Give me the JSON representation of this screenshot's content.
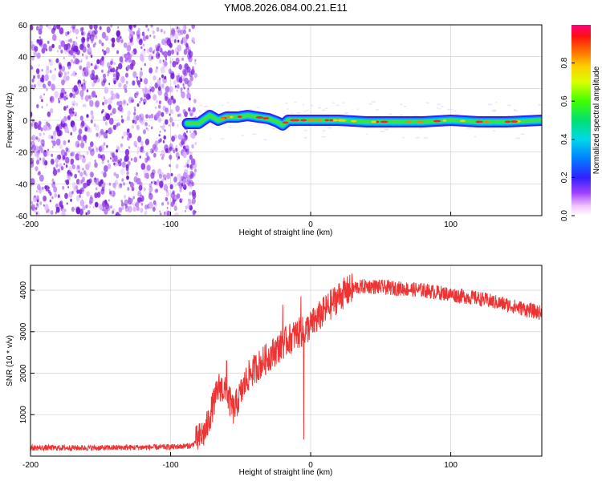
{
  "title": "YM08.2026.084.00.21.E11",
  "colors": {
    "snr_line": "#ee3333",
    "noise_dots": "#8a2be2",
    "grid": "#cccccc"
  },
  "chart_data": [
    {
      "type": "heatmap",
      "xlabel": "Height of straight line (km)",
      "ylabel": "Frequency (Hz)",
      "xlim": [
        -200,
        165
      ],
      "ylim": [
        -60,
        60
      ],
      "xticks": [
        -200,
        -100,
        0,
        100
      ],
      "xtick_labels": [
        "-200",
        "-100",
        "0",
        "100"
      ],
      "yticks": [
        -60,
        -40,
        -20,
        0,
        20,
        40,
        60
      ],
      "ytick_labels": [
        "-60",
        "-40",
        "-20",
        "0",
        "20",
        "40",
        "60"
      ],
      "noise_region": {
        "x_from": -200,
        "x_to": -82
      },
      "signal_ridge": {
        "x": [
          -88,
          -80,
          -72,
          -66,
          -60,
          -52,
          -45,
          -38,
          -30,
          -24,
          -20,
          -16,
          -10,
          -4,
          0,
          20,
          40,
          80,
          100,
          120,
          140,
          165
        ],
        "freq": [
          -2,
          -2,
          3,
          0,
          2,
          2,
          3,
          2,
          1,
          -1,
          -3,
          0,
          0,
          0,
          0,
          0,
          -1,
          -1,
          0,
          -1,
          -1,
          0
        ]
      },
      "colorbar": {
        "label": "Normalized spectral amplitude",
        "range": [
          0.0,
          1.0
        ],
        "ticks": [
          0.0,
          0.2,
          0.4,
          0.6,
          0.8
        ],
        "tick_labels": [
          "0.0",
          "0.2",
          "0.4",
          "0.6",
          "0.8"
        ]
      }
    },
    {
      "type": "line",
      "xlabel": "Height of straight line (km)",
      "ylabel": "SNR (10 * v/v)",
      "xlim": [
        -200,
        165
      ],
      "ylim": [
        0,
        4600
      ],
      "xticks": [
        -200,
        -100,
        0,
        100
      ],
      "xtick_labels": [
        "-200",
        "-100",
        "0",
        "100"
      ],
      "yticks": [
        1000,
        2000,
        3000,
        4000
      ],
      "ytick_labels": [
        "1000",
        "2000",
        "3000",
        "4000"
      ],
      "series": [
        {
          "name": "SNR",
          "x": [
            -200,
            -150,
            -100,
            -85,
            -75,
            -70,
            -65,
            -60,
            -55,
            -50,
            -45,
            -40,
            -30,
            -20,
            -10,
            -5,
            0,
            10,
            20,
            30,
            40,
            60,
            80,
            100,
            120,
            140,
            165
          ],
          "y": [
            200,
            200,
            220,
            250,
            600,
            1200,
            1700,
            1500,
            1100,
            1500,
            1900,
            2100,
            2400,
            2700,
            2950,
            3000,
            3150,
            3500,
            3850,
            4050,
            4100,
            4050,
            4000,
            3900,
            3800,
            3650,
            3450
          ],
          "spikes": [
            {
              "x": -60,
              "y": 2300
            },
            {
              "x": -20,
              "y": 3650
            },
            {
              "x": -7,
              "y": 3850
            },
            {
              "x": -5,
              "y": 400
            }
          ]
        }
      ]
    }
  ]
}
